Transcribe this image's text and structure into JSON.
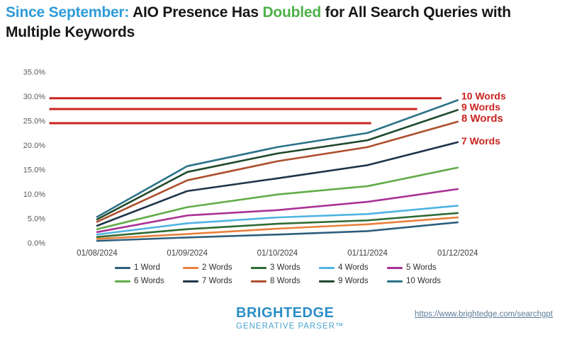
{
  "title": {
    "line1": [
      {
        "text": "Since September: ",
        "color": "#2e9bd8"
      },
      {
        "text": "AIO Presence Has ",
        "color": "#161616"
      },
      {
        "text": "Doubled",
        "color": "#4db047"
      },
      {
        "text": " for All Search Queries with",
        "color": "#161616"
      }
    ],
    "line2": [
      {
        "text": "Multiple Keywords",
        "color": "#161616"
      }
    ]
  },
  "chart_data": {
    "type": "line",
    "x": [
      "01/08/2024",
      "01/09/2024",
      "01/10/2024",
      "01/11/2024",
      "01/12/2024"
    ],
    "series": [
      {
        "name": "1 Word",
        "color": "#2e5f7d",
        "values": [
          0.4,
          1.1,
          1.7,
          2.4,
          4.2
        ]
      },
      {
        "name": "2 Words",
        "color": "#e8803a",
        "values": [
          0.8,
          1.8,
          2.9,
          3.8,
          5.2
        ]
      },
      {
        "name": "3 Words",
        "color": "#2f6b35",
        "values": [
          1.2,
          2.8,
          3.9,
          4.6,
          6.1
        ]
      },
      {
        "name": "4 Words",
        "color": "#4fb3e2",
        "values": [
          1.7,
          4.0,
          5.2,
          5.9,
          7.6
        ]
      },
      {
        "name": "5 Words",
        "color": "#aa3296",
        "values": [
          2.2,
          5.6,
          6.7,
          8.4,
          11.0
        ]
      },
      {
        "name": "6 Words",
        "color": "#62ac49",
        "values": [
          2.8,
          7.3,
          9.9,
          11.6,
          15.4
        ]
      },
      {
        "name": "7 Words",
        "color": "#1f3448",
        "values": [
          3.5,
          10.6,
          13.2,
          15.9,
          20.6
        ]
      },
      {
        "name": "8 Words",
        "color": "#ad4f2d",
        "values": [
          4.3,
          12.8,
          16.7,
          19.6,
          24.8
        ]
      },
      {
        "name": "9 Words",
        "color": "#20492b",
        "values": [
          4.8,
          14.5,
          18.3,
          21.0,
          27.2
        ]
      },
      {
        "name": "10 Words",
        "color": "#2b7389",
        "values": [
          5.3,
          15.7,
          19.6,
          22.5,
          29.2
        ]
      }
    ],
    "ylim": [
      0,
      35
    ],
    "ytick_step": 5,
    "ytick_labels": [
      "0.0%",
      "5.0%",
      "10.0%",
      "15.0%",
      "20.0%",
      "25.0%",
      "30.0%",
      "35.0%"
    ],
    "grid": false,
    "legend_position": "bottom",
    "annotations": {
      "color": "#c9231f",
      "hlines": [
        {
          "value": 29.6,
          "x1": -0.53,
          "x2": 3.82
        },
        {
          "value": 27.4,
          "x1": -0.53,
          "x2": 3.55
        },
        {
          "value": 24.5,
          "x1": -0.53,
          "x2": 3.04
        }
      ],
      "labels": [
        {
          "text": "10 Words",
          "value": 30.1,
          "bold": false
        },
        {
          "text": "9 Words",
          "value": 27.8,
          "bold": false
        },
        {
          "text": "8 Words",
          "value": 25.5,
          "bold": true
        },
        {
          "text": "7 Words",
          "value": 20.9,
          "bold": false
        }
      ]
    }
  },
  "footer": {
    "logo_line1": "BRIGHTEDGE",
    "logo_line2": "GENERATIVE PARSER™",
    "link_text": "https://www.brightedge.com/searchgpt"
  }
}
